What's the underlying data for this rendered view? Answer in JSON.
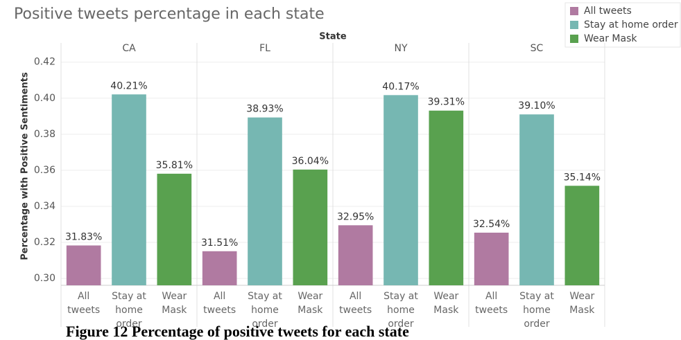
{
  "chart_data": {
    "type": "bar",
    "title": "Positive tweets percentage in each state",
    "facet_label": "State",
    "y_label": "Percentage with Positive Sentiments",
    "categories": [
      "All tweets",
      "Stay at home order",
      "Wear Mask"
    ],
    "colors": [
      "#b07aa1",
      "#76b7b2",
      "#59a14f"
    ],
    "facets": [
      {
        "name": "CA",
        "values": [
          0.3183,
          0.4021,
          0.3581
        ],
        "value_labels": [
          "31.83%",
          "40.21%",
          "35.81%"
        ]
      },
      {
        "name": "FL",
        "values": [
          0.3151,
          0.3893,
          0.3604
        ],
        "value_labels": [
          "31.51%",
          "38.93%",
          "36.04%"
        ]
      },
      {
        "name": "NY",
        "values": [
          0.3295,
          0.4017,
          0.3931
        ],
        "value_labels": [
          "32.95%",
          "40.17%",
          "39.31%"
        ]
      },
      {
        "name": "SC",
        "values": [
          0.3254,
          0.391,
          0.3514
        ],
        "value_labels": [
          "32.54%",
          "39.10%",
          "35.14%"
        ]
      }
    ],
    "ylim": [
      0.2962,
      0.4245
    ],
    "yticks": [
      {
        "value": 0.3,
        "label": "0.30"
      },
      0.32,
      0.34,
      0.36,
      0.38,
      {
        "value": 0.4,
        "label": "0.40"
      },
      0.42
    ],
    "grid": true,
    "legend": "top-right",
    "caption": "Figure 12 Percentage of positive tweets for each state"
  }
}
